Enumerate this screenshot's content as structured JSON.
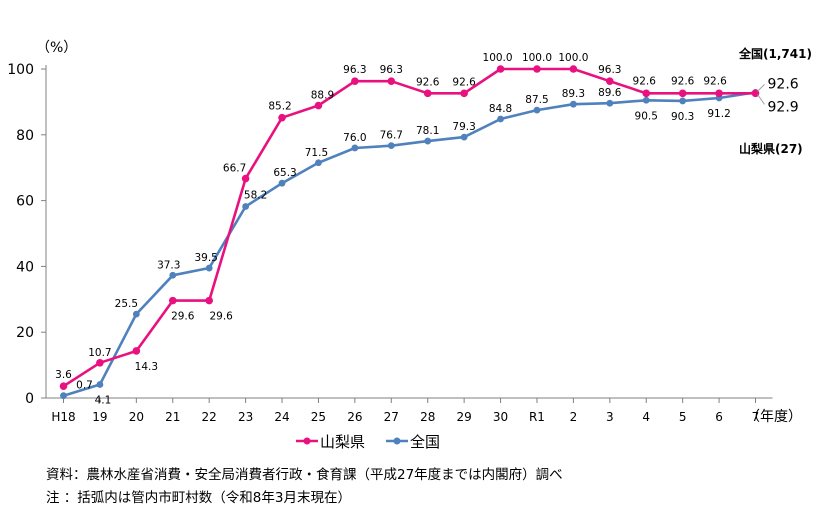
{
  "chart_data": {
    "type": "line",
    "y_unit": "（%）",
    "x_unit": "（年度）",
    "categories": [
      "H18",
      "19",
      "20",
      "21",
      "22",
      "23",
      "24",
      "25",
      "26",
      "27",
      "28",
      "29",
      "30",
      "R1",
      "2",
      "3",
      "4",
      "5",
      "6",
      "7"
    ],
    "y_ticks": [
      "0",
      "20",
      "40",
      "60",
      "80",
      "100"
    ],
    "ylim": [
      0,
      100
    ],
    "grid": false,
    "legend_position": "bottom",
    "series": [
      {
        "name": "山梨県",
        "color": "#e8117f",
        "values": [
          3.6,
          10.7,
          14.3,
          29.6,
          29.6,
          66.7,
          85.2,
          88.9,
          96.3,
          96.3,
          92.6,
          92.6,
          100.0,
          100.0,
          100.0,
          96.3,
          92.6,
          92.6,
          92.6,
          92.6
        ],
        "labels": [
          "3.6",
          "10.7",
          "14.3",
          "29.6",
          "29.6",
          "66.7",
          "85.2",
          "88.9",
          "96.3",
          "96.3",
          "92.6",
          "92.6",
          "100.0",
          "100.0",
          "100.0",
          "96.3",
          "92.6",
          "92.6",
          "92.6",
          "92.6"
        ],
        "side_label": "山梨県(27)"
      },
      {
        "name": "全国",
        "color": "#4f81bd",
        "values": [
          0.7,
          4.1,
          25.5,
          37.3,
          39.5,
          58.2,
          65.3,
          71.5,
          76.0,
          76.7,
          78.1,
          79.3,
          84.8,
          87.5,
          89.3,
          89.6,
          90.5,
          90.3,
          91.2,
          92.9
        ],
        "labels": [
          "0.7",
          "4.1",
          "25.5",
          "37.3",
          "39.5",
          "58.2",
          "65.3",
          "71.5",
          "76.0",
          "76.7",
          "78.1",
          "79.3",
          "84.8",
          "87.5",
          "89.3",
          "89.6",
          "90.5",
          "90.3",
          "91.2",
          "92.9"
        ],
        "side_label": "全国(1,741)"
      }
    ]
  },
  "notes": {
    "source": "資料：農林水産省消費・安全局消費者行政・食育課（平成27年度までは内閣府）調べ",
    "note": "注 ：括弧内は管内市町村数（令和8年3月末現在）"
  }
}
